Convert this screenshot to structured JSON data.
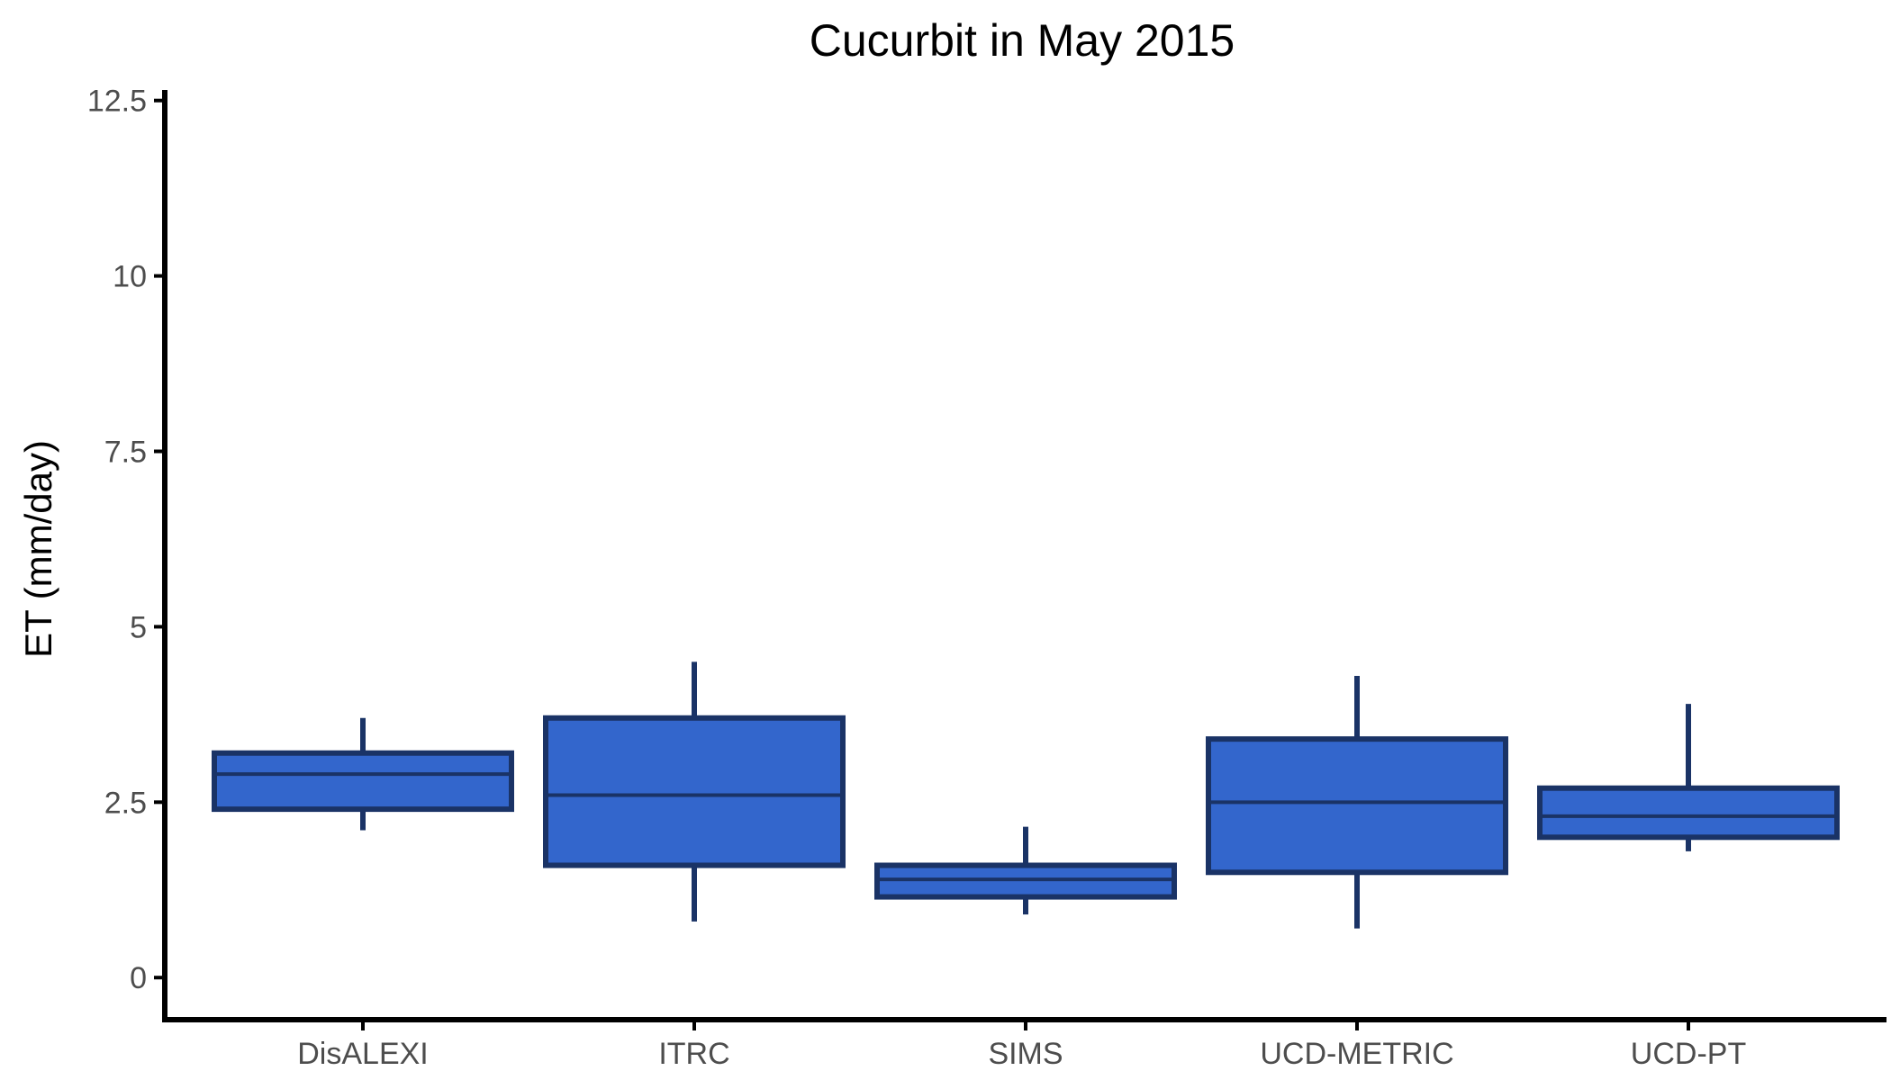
{
  "chart_data": {
    "type": "boxplot",
    "title": "Cucurbit in May 2015",
    "xlabel": "",
    "ylabel": "ET (mm/day)",
    "ylim": [
      -0.6,
      12.65
    ],
    "yticks": [
      0,
      2.5,
      5,
      7.5,
      10,
      12.5
    ],
    "ytick_labels": [
      "0",
      "2.5",
      "5",
      "7.5",
      "10",
      "12.5"
    ],
    "grid": false,
    "legend": "none",
    "colors": {
      "box_fill": "#3366cc",
      "box_stroke": "#1a3366",
      "axis": "#000000",
      "tick_label": "#4d4d4d"
    },
    "categories": [
      "DisALEXI",
      "ITRC",
      "SIMS",
      "UCD-METRIC",
      "UCD-PT"
    ],
    "boxes": [
      {
        "category": "DisALEXI",
        "whisker_low": 2.1,
        "q1": 2.4,
        "median": 2.9,
        "q3": 3.2,
        "whisker_high": 3.7
      },
      {
        "category": "ITRC",
        "whisker_low": 0.8,
        "q1": 1.6,
        "median": 2.6,
        "q3": 3.7,
        "whisker_high": 4.5
      },
      {
        "category": "SIMS",
        "whisker_low": 0.9,
        "q1": 1.15,
        "median": 1.4,
        "q3": 1.6,
        "whisker_high": 2.15
      },
      {
        "category": "UCD-METRIC",
        "whisker_low": 0.7,
        "q1": 1.5,
        "median": 2.5,
        "q3": 3.4,
        "whisker_high": 4.3
      },
      {
        "category": "UCD-PT",
        "whisker_low": 1.8,
        "q1": 2.0,
        "median": 2.3,
        "q3": 2.7,
        "whisker_high": 3.9
      }
    ]
  }
}
